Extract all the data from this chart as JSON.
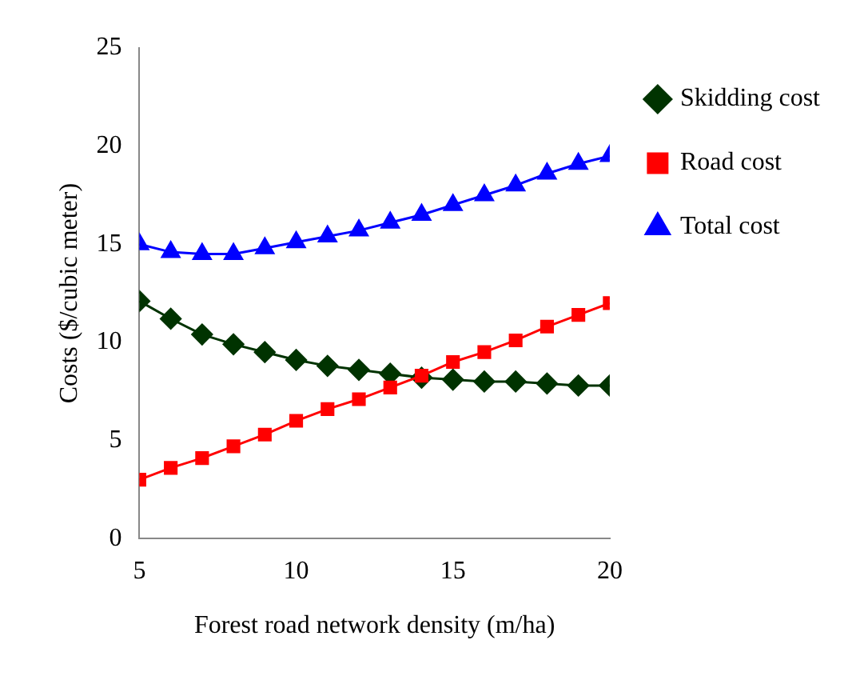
{
  "chart_data": {
    "type": "line",
    "xlabel": "Forest road network density (m/ha)",
    "ylabel": "Costs ($/cubic meter)",
    "x": [
      5,
      6,
      7,
      8,
      9,
      10,
      11,
      12,
      13,
      14,
      15,
      16,
      17,
      18,
      19,
      20
    ],
    "xlim": [
      5,
      20
    ],
    "xticks": [
      5,
      10,
      15,
      20
    ],
    "ylim": [
      0,
      25
    ],
    "yticks": [
      0,
      5,
      10,
      15,
      20,
      25
    ],
    "grid": false,
    "legend": "right",
    "series": [
      {
        "name": "Skidding cost",
        "color": "#003300",
        "marker": "diamond",
        "values": [
          12.1,
          11.2,
          10.4,
          9.9,
          9.5,
          9.1,
          8.8,
          8.6,
          8.4,
          8.2,
          8.1,
          8.0,
          8.0,
          7.9,
          7.8,
          7.8
        ]
      },
      {
        "name": "Road cost",
        "color": "#ff0000",
        "marker": "square",
        "values": [
          3.0,
          3.6,
          4.1,
          4.7,
          5.3,
          6.0,
          6.6,
          7.1,
          7.7,
          8.3,
          9.0,
          9.5,
          10.1,
          10.8,
          11.4,
          12.0
        ]
      },
      {
        "name": "Total cost",
        "color": "#0000ff",
        "marker": "triangle",
        "values": [
          15.0,
          14.6,
          14.5,
          14.5,
          14.8,
          15.1,
          15.4,
          15.7,
          16.1,
          16.5,
          17.0,
          17.5,
          18.0,
          18.6,
          19.1,
          19.5
        ]
      }
    ]
  }
}
